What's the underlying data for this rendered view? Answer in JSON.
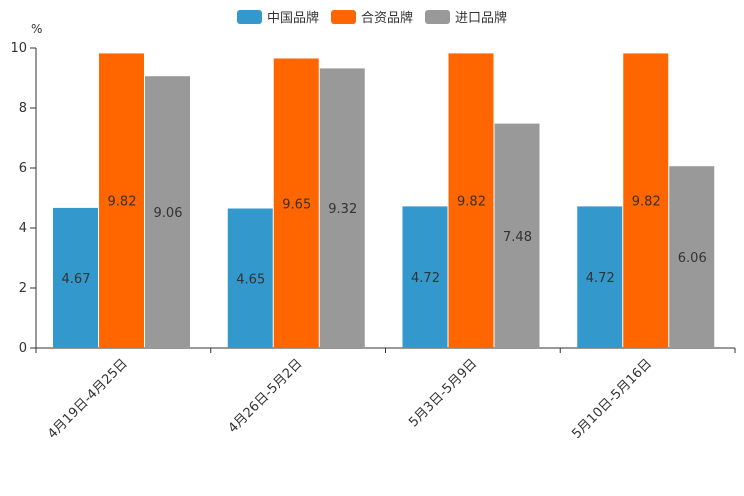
{
  "chart_data": {
    "type": "bar",
    "title": "",
    "unit_label": "%",
    "xlabel": "",
    "ylabel": "%",
    "ylim": [
      0,
      10
    ],
    "yticks": [
      0,
      2,
      4,
      6,
      8,
      10
    ],
    "legend_position": "top-center",
    "categories": [
      "4月19日-4月25日",
      "4月26日-5月2日",
      "5月3日-5月9日",
      "5月10日-5月16日"
    ],
    "series": [
      {
        "name": "中国品牌",
        "color": "#3398cc",
        "values": [
          4.67,
          4.65,
          4.72,
          4.72
        ]
      },
      {
        "name": "合资品牌",
        "color": "#ff6600",
        "values": [
          9.82,
          9.65,
          9.82,
          9.82
        ]
      },
      {
        "name": "进口品牌",
        "color": "#999999",
        "values": [
          9.06,
          9.32,
          7.48,
          6.06
        ]
      }
    ]
  }
}
